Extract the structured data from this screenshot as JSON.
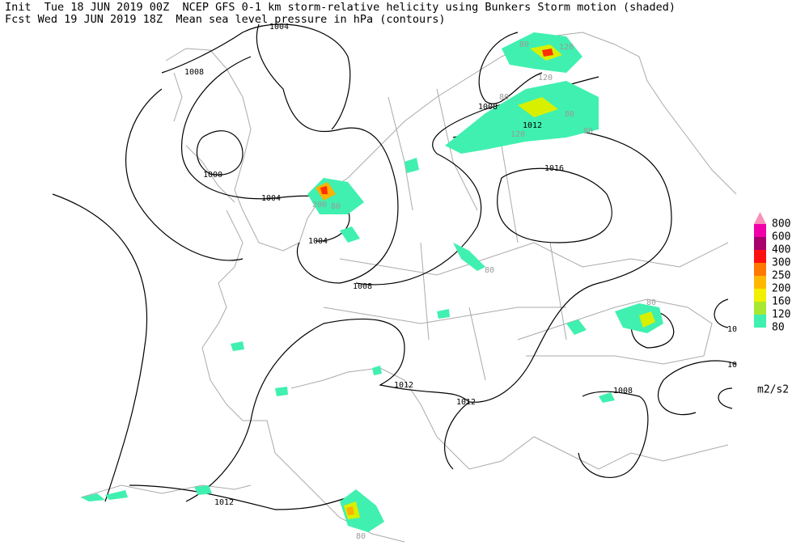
{
  "header": {
    "line1": "Init  Tue 18 JUN 2019 00Z  NCEP GFS 0-1 km storm-relative helicity using Bunkers Storm motion (shaded)",
    "line2": "Fcst Wed 19 JUN 2019 18Z  Mean sea level pressure in hPa (contours)"
  },
  "contour_labels": [
    "1004",
    "1008",
    "1000",
    "1004",
    "1004",
    "1008",
    "1008",
    "1012",
    "1016",
    "1012",
    "1012",
    "1008",
    "1012",
    "10",
    "10"
  ],
  "shade_labels": [
    "80",
    "120",
    "120",
    "80",
    "80",
    "80",
    "120",
    "200",
    "80",
    "80",
    "80",
    "80"
  ],
  "legend": {
    "labels": [
      "800",
      "600",
      "400",
      "300",
      "250",
      "200",
      "160",
      "120",
      "80"
    ],
    "colors": [
      "#f890b8",
      "#f000a8",
      "#a8006c",
      "#ff1010",
      "#ff7800",
      "#ffb800",
      "#f0f000",
      "#a8e830",
      "#40f0b0"
    ],
    "units": "m2/s2"
  }
}
